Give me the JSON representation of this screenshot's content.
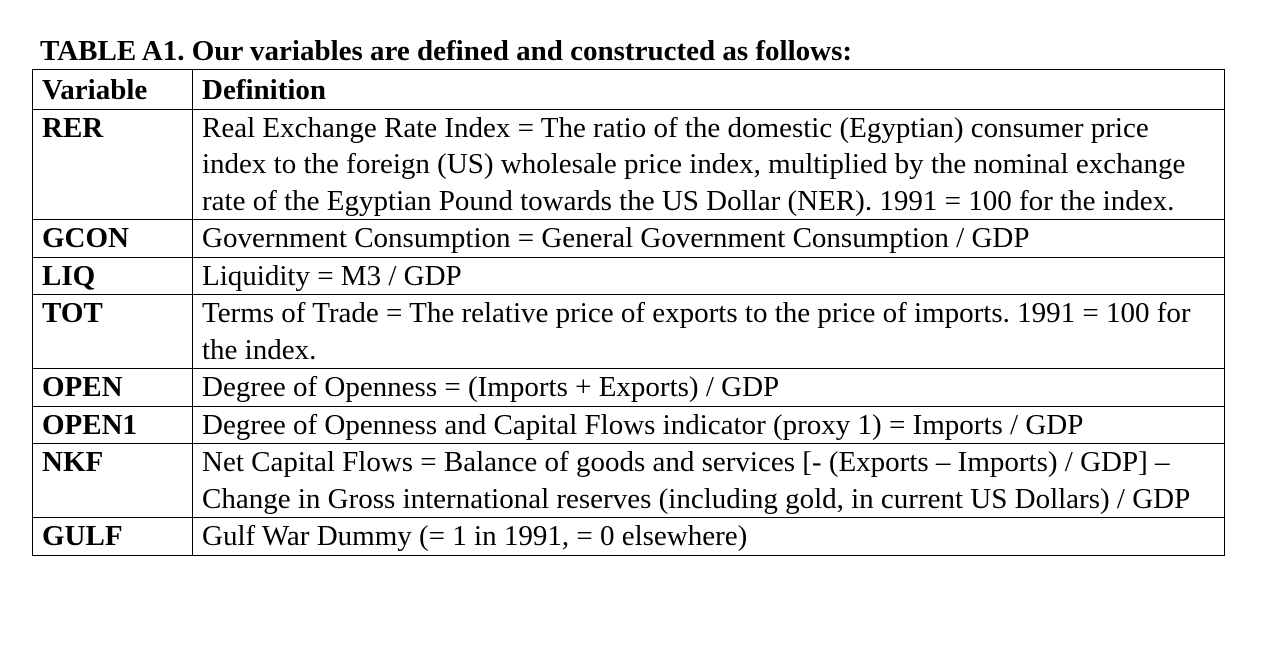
{
  "caption": "TABLE A1. Our variables are defined and constructed as follows:",
  "table": {
    "headers": [
      "Variable",
      "Definition"
    ],
    "rows": [
      {
        "variable": "RER",
        "definition": "Real Exchange Rate Index = The ratio of the domestic (Egyptian) consumer price index to the foreign (US) wholesale price index, multiplied by the nominal exchange rate of the Egyptian Pound towards the US Dollar (NER). 1991 = 100 for the index."
      },
      {
        "variable": "GCON",
        "definition": "Government Consumption = General Government Consumption / GDP"
      },
      {
        "variable": "LIQ",
        "definition": "Liquidity = M3 / GDP"
      },
      {
        "variable": "TOT",
        "definition": "Terms of Trade = The relative price of exports to the price of imports. 1991 = 100 for the index."
      },
      {
        "variable": "OPEN",
        "definition": "Degree of Openness = (Imports + Exports) / GDP"
      },
      {
        "variable": "OPEN1",
        "definition": "Degree of Openness and Capital Flows indicator (proxy 1) = Imports / GDP"
      },
      {
        "variable": "NKF",
        "definition": "Net Capital Flows = Balance of goods and services [- (Exports – Imports) / GDP] – Change in Gross international reserves (including gold, in current US Dollars) / GDP"
      },
      {
        "variable": "GULF",
        "definition": "Gulf War Dummy (= 1 in 1991, = 0 elsewhere)"
      }
    ]
  }
}
